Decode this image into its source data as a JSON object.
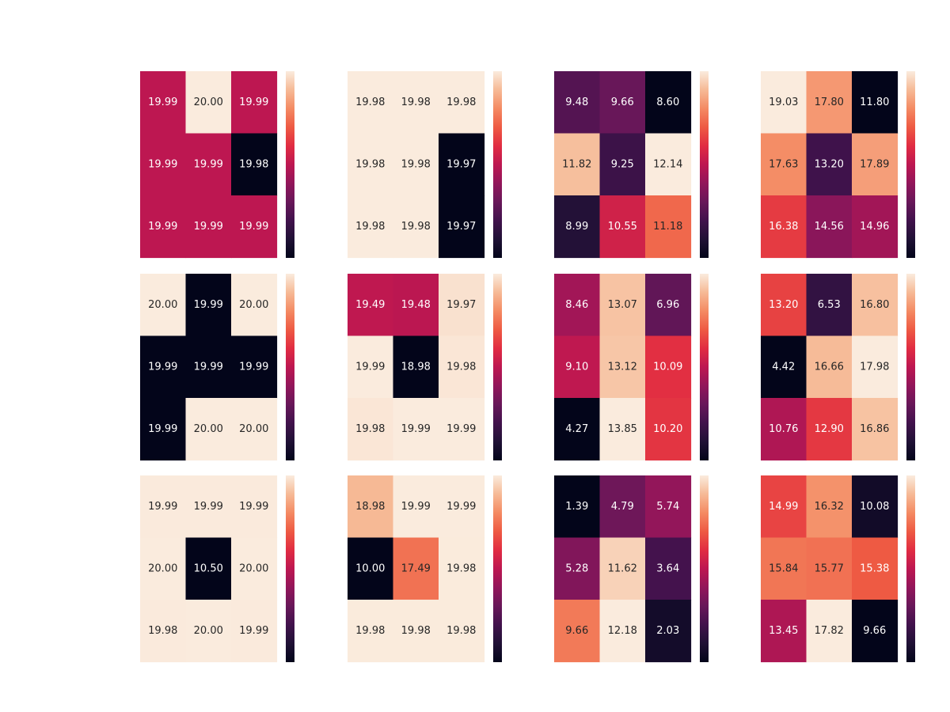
{
  "chart_data": [
    {
      "type": "heatmap",
      "cmap": "rocket",
      "annot": true,
      "colorbar": true,
      "tick_labels": "none",
      "values": [
        [
          19.99,
          20.0,
          19.99
        ],
        [
          19.99,
          19.99,
          19.98
        ],
        [
          19.99,
          19.99,
          19.99
        ]
      ],
      "labels": [
        [
          "19.99",
          "20.00",
          "19.99"
        ],
        [
          "19.99",
          "19.99",
          "19.98"
        ],
        [
          "19.99",
          "19.99",
          "19.99"
        ]
      ]
    },
    {
      "type": "heatmap",
      "cmap": "rocket",
      "annot": true,
      "colorbar": true,
      "tick_labels": "none",
      "values": [
        [
          19.98,
          19.98,
          19.98
        ],
        [
          19.98,
          19.98,
          19.97
        ],
        [
          19.98,
          19.98,
          19.97
        ]
      ],
      "labels": [
        [
          "19.98",
          "19.98",
          "19.98"
        ],
        [
          "19.98",
          "19.98",
          "19.97"
        ],
        [
          "19.98",
          "19.98",
          "19.97"
        ]
      ]
    },
    {
      "type": "heatmap",
      "cmap": "rocket",
      "annot": true,
      "colorbar": true,
      "tick_labels": "none",
      "values": [
        [
          9.48,
          9.66,
          8.6
        ],
        [
          11.82,
          9.25,
          12.14
        ],
        [
          8.99,
          10.55,
          11.18
        ]
      ],
      "labels": [
        [
          "9.48",
          "9.66",
          "8.60"
        ],
        [
          "11.82",
          "9.25",
          "12.14"
        ],
        [
          "8.99",
          "10.55",
          "11.18"
        ]
      ]
    },
    {
      "type": "heatmap",
      "cmap": "rocket",
      "annot": true,
      "colorbar": true,
      "tick_labels": "none",
      "values": [
        [
          19.03,
          17.8,
          11.8
        ],
        [
          17.63,
          13.2,
          17.89
        ],
        [
          16.38,
          14.56,
          14.96
        ]
      ],
      "labels": [
        [
          "19.03",
          "17.80",
          "11.80"
        ],
        [
          "17.63",
          "13.20",
          "17.89"
        ],
        [
          "16.38",
          "14.56",
          "14.96"
        ]
      ]
    },
    {
      "type": "heatmap",
      "cmap": "rocket",
      "annot": true,
      "colorbar": true,
      "tick_labels": "none",
      "values": [
        [
          20.0,
          19.99,
          20.0
        ],
        [
          19.99,
          19.99,
          19.99
        ],
        [
          19.99,
          20.0,
          20.0
        ]
      ],
      "labels": [
        [
          "20.00",
          "19.99",
          "20.00"
        ],
        [
          "19.99",
          "19.99",
          "19.99"
        ],
        [
          "19.99",
          "20.00",
          "20.00"
        ]
      ]
    },
    {
      "type": "heatmap",
      "cmap": "rocket",
      "annot": true,
      "colorbar": true,
      "tick_labels": "none",
      "values": [
        [
          19.49,
          19.48,
          19.97
        ],
        [
          19.99,
          18.98,
          19.98
        ],
        [
          19.98,
          19.99,
          19.99
        ]
      ],
      "labels": [
        [
          "19.49",
          "19.48",
          "19.97"
        ],
        [
          "19.99",
          "18.98",
          "19.98"
        ],
        [
          "19.98",
          "19.99",
          "19.99"
        ]
      ]
    },
    {
      "type": "heatmap",
      "cmap": "rocket",
      "annot": true,
      "colorbar": true,
      "tick_labels": "none",
      "values": [
        [
          8.46,
          13.07,
          6.96
        ],
        [
          9.1,
          13.12,
          10.09
        ],
        [
          4.27,
          13.85,
          10.2
        ]
      ],
      "labels": [
        [
          "8.46",
          "13.07",
          "6.96"
        ],
        [
          "9.10",
          "13.12",
          "10.09"
        ],
        [
          "4.27",
          "13.85",
          "10.20"
        ]
      ]
    },
    {
      "type": "heatmap",
      "cmap": "rocket",
      "annot": true,
      "colorbar": true,
      "tick_labels": "none",
      "values": [
        [
          13.2,
          6.53,
          16.8
        ],
        [
          4.42,
          16.66,
          17.98
        ],
        [
          10.76,
          12.9,
          16.86
        ]
      ],
      "labels": [
        [
          "13.20",
          "6.53",
          "16.80"
        ],
        [
          "4.42",
          "16.66",
          "17.98"
        ],
        [
          "10.76",
          "12.90",
          "16.86"
        ]
      ]
    },
    {
      "type": "heatmap",
      "cmap": "rocket",
      "annot": true,
      "colorbar": true,
      "tick_labels": "none",
      "values": [
        [
          19.99,
          19.99,
          19.99
        ],
        [
          20.0,
          10.5,
          20.0
        ],
        [
          19.98,
          20.0,
          19.99
        ]
      ],
      "labels": [
        [
          "19.99",
          "19.99",
          "19.99"
        ],
        [
          "20.00",
          "10.50",
          "20.00"
        ],
        [
          "19.98",
          "20.00",
          "19.99"
        ]
      ]
    },
    {
      "type": "heatmap",
      "cmap": "rocket",
      "annot": true,
      "colorbar": true,
      "tick_labels": "none",
      "values": [
        [
          18.98,
          19.99,
          19.99
        ],
        [
          10.0,
          17.49,
          19.98
        ],
        [
          19.98,
          19.98,
          19.98
        ]
      ],
      "labels": [
        [
          "18.98",
          "19.99",
          "19.99"
        ],
        [
          "10.00",
          "17.49",
          "19.98"
        ],
        [
          "19.98",
          "19.98",
          "19.98"
        ]
      ]
    },
    {
      "type": "heatmap",
      "cmap": "rocket",
      "annot": true,
      "colorbar": true,
      "tick_labels": "none",
      "values": [
        [
          1.39,
          4.79,
          5.74
        ],
        [
          5.28,
          11.62,
          3.64
        ],
        [
          9.66,
          12.18,
          2.03
        ]
      ],
      "labels": [
        [
          "1.39",
          "4.79",
          "5.74"
        ],
        [
          "5.28",
          "11.62",
          "3.64"
        ],
        [
          "9.66",
          "12.18",
          "2.03"
        ]
      ]
    },
    {
      "type": "heatmap",
      "cmap": "rocket",
      "annot": true,
      "colorbar": true,
      "tick_labels": "none",
      "values": [
        [
          14.99,
          16.32,
          10.08
        ],
        [
          15.84,
          15.77,
          15.38
        ],
        [
          13.45,
          17.82,
          9.66
        ]
      ],
      "labels": [
        [
          "14.99",
          "16.32",
          "10.08"
        ],
        [
          "15.84",
          "15.77",
          "15.38"
        ],
        [
          "13.45",
          "17.82",
          "9.66"
        ]
      ]
    }
  ]
}
